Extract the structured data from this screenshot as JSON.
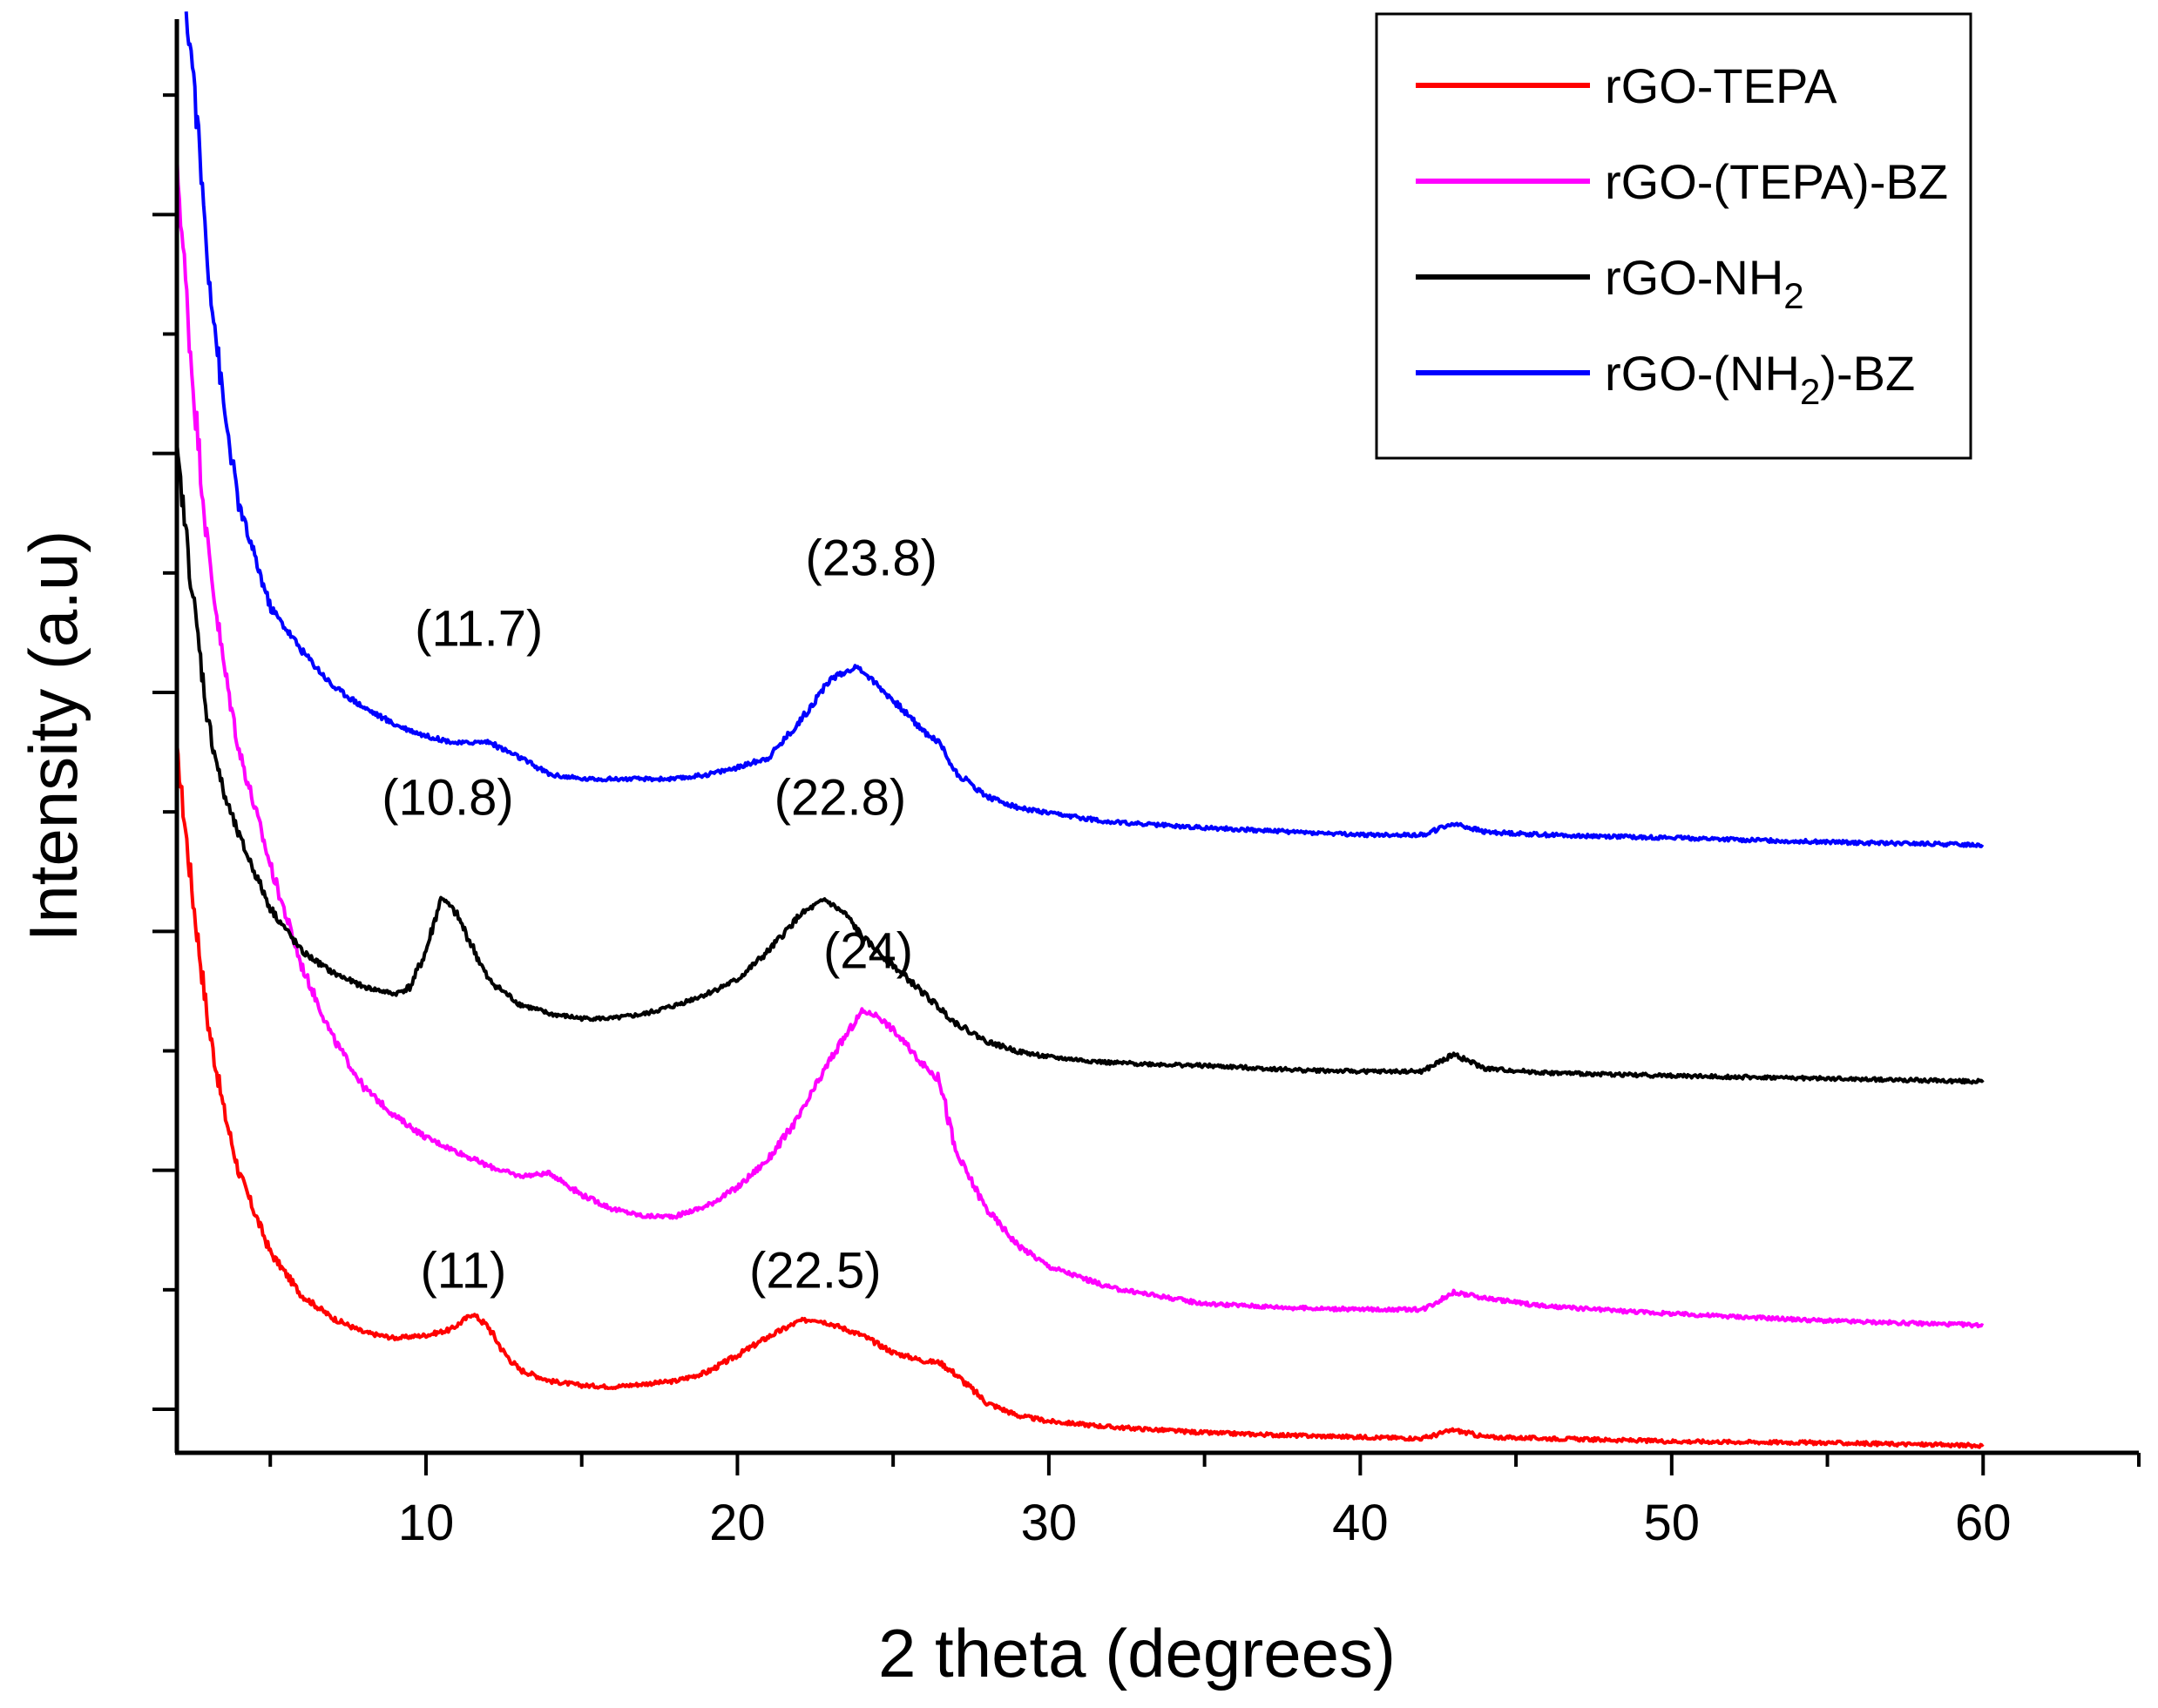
{
  "chart_data": {
    "type": "line",
    "title": "",
    "xlabel": "2 theta (degrees)",
    "ylabel": "Intensity (a.u)",
    "xlim": [
      2,
      65
    ],
    "ylim": [
      0,
      100
    ],
    "x_ticks": [
      10,
      20,
      30,
      40,
      50,
      60
    ],
    "x_tick_labels": [
      "10",
      "20",
      "30",
      "40",
      "50",
      "60"
    ],
    "y_tick_labels_shown": false,
    "legend": {
      "position": "top-right",
      "entries": [
        {
          "series": "rGO-TEPA",
          "text": "rGO-TEPA",
          "sub": "",
          "tail": "",
          "color": "#ff0000"
        },
        {
          "series": "rGO-(TEPA)-BZ",
          "text": "rGO-(TEPA)-BZ",
          "sub": "",
          "tail": "",
          "color": "#ff00ff"
        },
        {
          "series": "rGO-NH2",
          "text": "rGO-NH",
          "sub": "2",
          "tail": "",
          "color": "#000000"
        },
        {
          "series": "rGO-(NH2)-BZ",
          "text": "rGO-(NH",
          "sub": "2",
          "tail": ")-BZ",
          "color": "#0000ff"
        }
      ]
    },
    "series": [
      {
        "name": "rGO-TEPA",
        "color": "#ff0000",
        "points": [
          [
            2,
            49
          ],
          [
            2.5,
            39
          ],
          [
            3,
            30
          ],
          [
            3.5,
            24
          ],
          [
            4,
            19.5
          ],
          [
            5,
            14
          ],
          [
            6,
            11
          ],
          [
            7,
            9.4
          ],
          [
            8,
            8.4
          ],
          [
            9,
            8
          ],
          [
            10,
            8.2
          ],
          [
            10.8,
            8.6
          ],
          [
            11.5,
            9.7
          ],
          [
            12,
            8.8
          ],
          [
            12.5,
            7
          ],
          [
            13,
            5.8
          ],
          [
            14,
            5
          ],
          [
            15,
            4.7
          ],
          [
            16,
            4.6
          ],
          [
            17,
            4.8
          ],
          [
            18,
            5
          ],
          [
            19,
            5.6
          ],
          [
            20,
            6.8
          ],
          [
            21,
            8.1
          ],
          [
            22,
            9.2
          ],
          [
            22.5,
            9.3
          ],
          [
            23,
            9
          ],
          [
            24,
            8.2
          ],
          [
            25,
            7
          ],
          [
            26,
            6.4
          ],
          [
            26.5,
            6.3
          ],
          [
            27,
            5.5
          ],
          [
            28,
            3.5
          ],
          [
            29,
            2.6
          ],
          [
            30,
            2.2
          ],
          [
            32,
            1.8
          ],
          [
            35,
            1.4
          ],
          [
            38,
            1.2
          ],
          [
            40,
            1.1
          ],
          [
            42,
            1
          ],
          [
            43,
            1.6
          ],
          [
            44,
            1.1
          ],
          [
            46,
            1
          ],
          [
            50,
            0.8
          ],
          [
            55,
            0.7
          ],
          [
            60,
            0.5
          ]
        ]
      },
      {
        "name": "rGO-(TEPA)-BZ",
        "color": "#ff00ff",
        "points": [
          [
            2,
            90
          ],
          [
            2.5,
            75
          ],
          [
            3,
            63
          ],
          [
            3.5,
            55
          ],
          [
            4,
            49
          ],
          [
            5,
            41
          ],
          [
            6,
            34
          ],
          [
            7,
            29
          ],
          [
            8,
            25.5
          ],
          [
            9,
            23.5
          ],
          [
            10,
            22
          ],
          [
            11,
            21
          ],
          [
            12,
            20
          ],
          [
            13,
            19.3
          ],
          [
            14,
            19.5
          ],
          [
            15,
            18
          ],
          [
            16,
            17
          ],
          [
            17,
            16.5
          ],
          [
            18,
            16.5
          ],
          [
            19,
            17.2
          ],
          [
            20,
            18.5
          ],
          [
            21,
            20.5
          ],
          [
            22,
            23.5
          ],
          [
            23,
            27.5
          ],
          [
            24,
            30.8
          ],
          [
            24.5,
            30.5
          ],
          [
            25,
            29.5
          ],
          [
            26,
            27
          ],
          [
            26.5,
            26
          ],
          [
            27,
            21
          ],
          [
            28,
            17
          ],
          [
            29,
            14.5
          ],
          [
            30,
            13
          ],
          [
            32,
            11.5
          ],
          [
            35,
            10.4
          ],
          [
            38,
            10.1
          ],
          [
            40,
            10
          ],
          [
            42,
            10
          ],
          [
            43,
            11.2
          ],
          [
            44,
            10.8
          ],
          [
            46,
            10.2
          ],
          [
            50,
            9.7
          ],
          [
            55,
            9.2
          ],
          [
            60,
            8.9
          ]
        ]
      },
      {
        "name": "rGO-NH2",
        "color": "#000000",
        "points": [
          [
            2,
            70
          ],
          [
            2.5,
            60
          ],
          [
            3,
            51
          ],
          [
            3.5,
            46
          ],
          [
            4,
            43
          ],
          [
            5,
            38
          ],
          [
            6,
            35
          ],
          [
            7,
            33.5
          ],
          [
            8,
            32.5
          ],
          [
            9,
            32
          ],
          [
            9.5,
            32.5
          ],
          [
            10,
            35
          ],
          [
            10.5,
            38.8
          ],
          [
            11,
            37.5
          ],
          [
            12,
            33
          ],
          [
            13,
            31.3
          ],
          [
            14,
            30.6
          ],
          [
            15,
            30.3
          ],
          [
            16,
            30.3
          ],
          [
            17,
            30.6
          ],
          [
            18,
            31.2
          ],
          [
            19,
            32
          ],
          [
            20,
            33
          ],
          [
            21,
            35
          ],
          [
            22,
            37.5
          ],
          [
            22.8,
            38.6
          ],
          [
            23.5,
            37.5
          ],
          [
            24,
            36
          ],
          [
            25,
            34
          ],
          [
            26,
            32
          ],
          [
            27,
            30
          ],
          [
            28,
            28.7
          ],
          [
            29,
            28
          ],
          [
            30,
            27.6
          ],
          [
            32,
            27.2
          ],
          [
            35,
            27
          ],
          [
            38,
            26.7
          ],
          [
            40,
            26.6
          ],
          [
            42,
            26.6
          ],
          [
            43,
            27.8
          ],
          [
            44,
            26.8
          ],
          [
            46,
            26.5
          ],
          [
            50,
            26.3
          ],
          [
            55,
            26.1
          ],
          [
            60,
            25.9
          ]
        ]
      },
      {
        "name": "rGO-(NH2)-BZ",
        "color": "#0000ff",
        "points": [
          [
            2.3,
            100
          ],
          [
            2.5,
            97
          ],
          [
            3,
            83
          ],
          [
            3.5,
            73
          ],
          [
            4,
            66
          ],
          [
            5,
            59
          ],
          [
            6,
            56
          ],
          [
            7,
            53.5
          ],
          [
            8,
            52
          ],
          [
            9,
            50.8
          ],
          [
            10,
            50
          ],
          [
            11,
            49.5
          ],
          [
            12,
            49.6
          ],
          [
            13,
            48.5
          ],
          [
            14,
            47.3
          ],
          [
            15,
            47
          ],
          [
            16,
            47
          ],
          [
            17,
            47
          ],
          [
            18,
            47
          ],
          [
            19,
            47.3
          ],
          [
            20,
            47.8
          ],
          [
            21,
            48.5
          ],
          [
            22,
            51
          ],
          [
            23,
            54
          ],
          [
            23.8,
            54.8
          ],
          [
            24,
            54.6
          ],
          [
            25,
            52.5
          ],
          [
            26,
            50.3
          ],
          [
            26.5,
            49.5
          ],
          [
            27,
            47.5
          ],
          [
            28,
            45.8
          ],
          [
            29,
            45
          ],
          [
            30,
            44.6
          ],
          [
            32,
            44
          ],
          [
            35,
            43.6
          ],
          [
            38,
            43.3
          ],
          [
            40,
            43.1
          ],
          [
            42,
            43.1
          ],
          [
            43,
            43.9
          ],
          [
            44,
            43.3
          ],
          [
            46,
            43.1
          ],
          [
            50,
            42.9
          ],
          [
            55,
            42.6
          ],
          [
            60,
            42.4
          ]
        ]
      }
    ],
    "annotations": [
      {
        "text": "(11.7)",
        "x": 11.7,
        "y": 56.3
      },
      {
        "text": "(23.8)",
        "x": 24.3,
        "y": 61.2
      },
      {
        "text": "(10.8)",
        "x": 10.7,
        "y": 44.5
      },
      {
        "text": "(22.8)",
        "x": 23.3,
        "y": 44.5
      },
      {
        "text": "(24)",
        "x": 24.2,
        "y": 33.8
      },
      {
        "text": "(11)",
        "x": 11.2,
        "y": 11.5
      },
      {
        "text": "(22.5)",
        "x": 22.5,
        "y": 11.5
      }
    ]
  }
}
